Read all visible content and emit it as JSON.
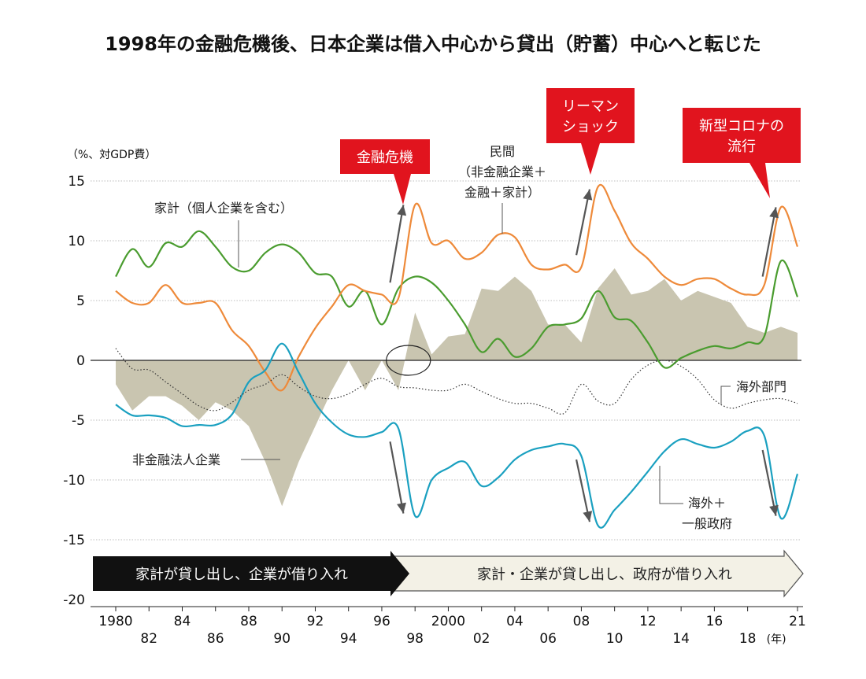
{
  "chart_data": {
    "type": "line",
    "title": "1998年の金融危機後、日本企業は借入中心から貸出（貯蓄）中心へと転じた",
    "ylabel": "（%、対GDP費）",
    "xunit": "(年)",
    "ylim": [
      -20,
      15
    ],
    "yticks": [
      15,
      10,
      5,
      0,
      -5,
      -10,
      -15,
      -20
    ],
    "xlim": [
      1980,
      2021
    ],
    "xticks": [
      {
        "x": 1980,
        "label": "1980",
        "row": 0
      },
      {
        "x": 1982,
        "label": "82",
        "row": 1
      },
      {
        "x": 1984,
        "label": "84",
        "row": 0
      },
      {
        "x": 1986,
        "label": "86",
        "row": 1
      },
      {
        "x": 1988,
        "label": "88",
        "row": 0
      },
      {
        "x": 1990,
        "label": "90",
        "row": 1
      },
      {
        "x": 1992,
        "label": "92",
        "row": 0
      },
      {
        "x": 1994,
        "label": "94",
        "row": 1
      },
      {
        "x": 1996,
        "label": "96",
        "row": 0
      },
      {
        "x": 1998,
        "label": "98",
        "row": 1
      },
      {
        "x": 2000,
        "label": "2000",
        "row": 0
      },
      {
        "x": 2002,
        "label": "02",
        "row": 1
      },
      {
        "x": 2004,
        "label": "04",
        "row": 0
      },
      {
        "x": 2006,
        "label": "06",
        "row": 1
      },
      {
        "x": 2008,
        "label": "08",
        "row": 0
      },
      {
        "x": 2010,
        "label": "10",
        "row": 1
      },
      {
        "x": 2012,
        "label": "12",
        "row": 0
      },
      {
        "x": 2014,
        "label": "14",
        "row": 1
      },
      {
        "x": 2016,
        "label": "16",
        "row": 0
      },
      {
        "x": 2018,
        "label": "18",
        "row": 1
      },
      {
        "x": 2021,
        "label": "21",
        "row": 0
      }
    ],
    "grid": true,
    "series": [
      {
        "name": "非金融法人企業",
        "kind": "area",
        "color": "#c9c5b0",
        "points": [
          [
            1980,
            -2.0
          ],
          [
            1981,
            -4.2
          ],
          [
            1982,
            -3.0
          ],
          [
            1983,
            -3.0
          ],
          [
            1984,
            -3.8
          ],
          [
            1985,
            -5.0
          ],
          [
            1986,
            -3.5
          ],
          [
            1987,
            -4.2
          ],
          [
            1988,
            -5.5
          ],
          [
            1989,
            -8.5
          ],
          [
            1990,
            -12.2
          ],
          [
            1991,
            -8.5
          ],
          [
            1992,
            -5.5
          ],
          [
            1993,
            -2.5
          ],
          [
            1994,
            0.0
          ],
          [
            1995,
            -2.5
          ],
          [
            1996,
            0.0
          ],
          [
            1997,
            -2.5
          ],
          [
            1998,
            4.0
          ],
          [
            1999,
            0.5
          ],
          [
            2000,
            2.0
          ],
          [
            2001,
            2.2
          ],
          [
            2002,
            6.0
          ],
          [
            2003,
            5.8
          ],
          [
            2004,
            7.0
          ],
          [
            2005,
            5.8
          ],
          [
            2006,
            3.0
          ],
          [
            2007,
            3.0
          ],
          [
            2008,
            1.5
          ],
          [
            2009,
            6.0
          ],
          [
            2010,
            7.7
          ],
          [
            2011,
            5.5
          ],
          [
            2012,
            5.8
          ],
          [
            2013,
            6.8
          ],
          [
            2014,
            5.0
          ],
          [
            2015,
            5.8
          ],
          [
            2016,
            5.3
          ],
          [
            2017,
            4.8
          ],
          [
            2018,
            2.8
          ],
          [
            2019,
            2.3
          ],
          [
            2020,
            2.8
          ],
          [
            2021,
            2.3
          ]
        ]
      },
      {
        "name": "家計（個人企業を含む）",
        "kind": "line",
        "color": "#4a9c2f",
        "points": [
          [
            1980,
            7.0
          ],
          [
            1981,
            9.3
          ],
          [
            1982,
            7.8
          ],
          [
            1983,
            9.8
          ],
          [
            1984,
            9.5
          ],
          [
            1985,
            10.8
          ],
          [
            1986,
            9.5
          ],
          [
            1987,
            7.8
          ],
          [
            1988,
            7.5
          ],
          [
            1989,
            9.0
          ],
          [
            1990,
            9.7
          ],
          [
            1991,
            9.0
          ],
          [
            1992,
            7.3
          ],
          [
            1993,
            7.0
          ],
          [
            1994,
            4.5
          ],
          [
            1995,
            5.8
          ],
          [
            1996,
            3.0
          ],
          [
            1997,
            6.0
          ],
          [
            1998,
            7.0
          ],
          [
            1999,
            6.5
          ],
          [
            2000,
            5.0
          ],
          [
            2001,
            3.0
          ],
          [
            2002,
            0.7
          ],
          [
            2003,
            1.8
          ],
          [
            2004,
            0.3
          ],
          [
            2005,
            1.0
          ],
          [
            2006,
            2.8
          ],
          [
            2007,
            3.0
          ],
          [
            2008,
            3.5
          ],
          [
            2009,
            5.8
          ],
          [
            2010,
            3.6
          ],
          [
            2011,
            3.3
          ],
          [
            2012,
            1.5
          ],
          [
            2013,
            -0.6
          ],
          [
            2014,
            0.2
          ],
          [
            2015,
            0.8
          ],
          [
            2016,
            1.2
          ],
          [
            2017,
            1.0
          ],
          [
            2018,
            1.5
          ],
          [
            2019,
            2.0
          ],
          [
            2020,
            8.3
          ],
          [
            2021,
            5.3
          ]
        ]
      },
      {
        "name": "民間（非金融企業＋金融＋家計）",
        "kind": "line",
        "color": "#ee8a3a",
        "points": [
          [
            1980,
            5.8
          ],
          [
            1981,
            4.8
          ],
          [
            1982,
            4.8
          ],
          [
            1983,
            6.3
          ],
          [
            1984,
            4.8
          ],
          [
            1985,
            4.8
          ],
          [
            1986,
            4.8
          ],
          [
            1987,
            2.5
          ],
          [
            1988,
            1.2
          ],
          [
            1989,
            -1.0
          ],
          [
            1990,
            -2.5
          ],
          [
            1991,
            0.3
          ],
          [
            1992,
            2.7
          ],
          [
            1993,
            4.5
          ],
          [
            1994,
            6.3
          ],
          [
            1995,
            5.8
          ],
          [
            1996,
            5.5
          ],
          [
            1997,
            5.2
          ],
          [
            1998,
            13.0
          ],
          [
            1999,
            9.8
          ],
          [
            2000,
            10.0
          ],
          [
            2001,
            8.5
          ],
          [
            2002,
            9.0
          ],
          [
            2003,
            10.5
          ],
          [
            2004,
            10.3
          ],
          [
            2005,
            8.0
          ],
          [
            2006,
            7.6
          ],
          [
            2007,
            8.0
          ],
          [
            2008,
            7.8
          ],
          [
            2009,
            14.5
          ],
          [
            2010,
            12.5
          ],
          [
            2011,
            9.8
          ],
          [
            2012,
            8.5
          ],
          [
            2013,
            7.0
          ],
          [
            2014,
            6.3
          ],
          [
            2015,
            6.8
          ],
          [
            2016,
            6.8
          ],
          [
            2017,
            6.0
          ],
          [
            2018,
            5.5
          ],
          [
            2019,
            6.3
          ],
          [
            2020,
            12.8
          ],
          [
            2021,
            9.5
          ]
        ]
      },
      {
        "name": "海外＋一般政府",
        "kind": "line",
        "color": "#1aa0c0",
        "points": [
          [
            1980,
            -3.7
          ],
          [
            1981,
            -4.6
          ],
          [
            1982,
            -4.6
          ],
          [
            1983,
            -4.8
          ],
          [
            1984,
            -5.5
          ],
          [
            1985,
            -5.4
          ],
          [
            1986,
            -5.4
          ],
          [
            1987,
            -4.5
          ],
          [
            1988,
            -1.8
          ],
          [
            1989,
            -0.8
          ],
          [
            1990,
            1.4
          ],
          [
            1991,
            -1.0
          ],
          [
            1992,
            -3.6
          ],
          [
            1993,
            -5.2
          ],
          [
            1994,
            -6.2
          ],
          [
            1995,
            -6.4
          ],
          [
            1996,
            -6.0
          ],
          [
            1997,
            -5.7
          ],
          [
            1998,
            -13.0
          ],
          [
            1999,
            -10.0
          ],
          [
            2000,
            -9.0
          ],
          [
            2001,
            -8.5
          ],
          [
            2002,
            -10.5
          ],
          [
            2003,
            -9.8
          ],
          [
            2004,
            -8.3
          ],
          [
            2005,
            -7.5
          ],
          [
            2006,
            -7.2
          ],
          [
            2007,
            -7.0
          ],
          [
            2008,
            -8.0
          ],
          [
            2009,
            -13.8
          ],
          [
            2010,
            -12.5
          ],
          [
            2011,
            -11.0
          ],
          [
            2012,
            -9.3
          ],
          [
            2013,
            -7.6
          ],
          [
            2014,
            -6.6
          ],
          [
            2015,
            -7.0
          ],
          [
            2016,
            -7.3
          ],
          [
            2017,
            -6.8
          ],
          [
            2018,
            -5.9
          ],
          [
            2019,
            -6.3
          ],
          [
            2020,
            -13.2
          ],
          [
            2021,
            -9.5
          ]
        ]
      },
      {
        "name": "海外部門",
        "kind": "dotted",
        "color": "#333333",
        "points": [
          [
            1980,
            1.0
          ],
          [
            1981,
            -0.7
          ],
          [
            1982,
            -0.8
          ],
          [
            1983,
            -1.8
          ],
          [
            1984,
            -2.8
          ],
          [
            1985,
            -3.8
          ],
          [
            1986,
            -4.2
          ],
          [
            1987,
            -3.5
          ],
          [
            1988,
            -2.5
          ],
          [
            1989,
            -2.0
          ],
          [
            1990,
            -1.2
          ],
          [
            1991,
            -2.2
          ],
          [
            1992,
            -3.0
          ],
          [
            1993,
            -3.2
          ],
          [
            1994,
            -2.8
          ],
          [
            1995,
            -2.0
          ],
          [
            1996,
            -1.5
          ],
          [
            1997,
            -2.2
          ],
          [
            1998,
            -2.3
          ],
          [
            1999,
            -2.5
          ],
          [
            2000,
            -2.5
          ],
          [
            2001,
            -2.0
          ],
          [
            2002,
            -2.6
          ],
          [
            2003,
            -3.2
          ],
          [
            2004,
            -3.6
          ],
          [
            2005,
            -3.6
          ],
          [
            2006,
            -4.0
          ],
          [
            2007,
            -4.4
          ],
          [
            2008,
            -2.0
          ],
          [
            2009,
            -3.4
          ],
          [
            2010,
            -3.6
          ],
          [
            2011,
            -1.6
          ],
          [
            2012,
            -0.4
          ],
          [
            2013,
            0.0
          ],
          [
            2014,
            -0.5
          ],
          [
            2015,
            -1.6
          ],
          [
            2016,
            -3.3
          ],
          [
            2017,
            -4.0
          ],
          [
            2018,
            -3.6
          ],
          [
            2019,
            -3.3
          ],
          [
            2020,
            -3.2
          ],
          [
            2021,
            -3.6
          ]
        ]
      }
    ],
    "labels": {
      "corp": "非金融法人企業",
      "household": "家計（個人企業を含む）",
      "private_lines": [
        "民間",
        "（非金融企業＋",
        "金融＋家計）"
      ],
      "overseas": "海外部門",
      "gov_lines": [
        "海外＋",
        "一般政府"
      ]
    },
    "events": [
      {
        "lines": [
          "金融危機"
        ],
        "x": 1998
      },
      {
        "lines": [
          "リーマン",
          "ショック"
        ],
        "x": 2009
      },
      {
        "lines": [
          "新型コロナの",
          "流行"
        ],
        "x": 2020
      }
    ],
    "arrows": [
      {
        "from": [
          1996.5,
          6.5
        ],
        "to": [
          1997.3,
          13.0
        ]
      },
      {
        "from": [
          1996.5,
          -6.8
        ],
        "to": [
          1997.3,
          -12.8
        ]
      },
      {
        "from": [
          2007.7,
          8.8
        ],
        "to": [
          2008.5,
          14.3
        ]
      },
      {
        "from": [
          2007.7,
          -8.3
        ],
        "to": [
          2008.5,
          -13.5
        ]
      },
      {
        "from": [
          2018.9,
          7.0
        ],
        "to": [
          2019.7,
          12.8
        ]
      },
      {
        "from": [
          2018.9,
          -7.5
        ],
        "to": [
          2019.7,
          -13.0
        ]
      }
    ],
    "phases": [
      {
        "label": "家計が貸し出し、企業が借り入れ",
        "from": 1978.2,
        "to": 1997.5,
        "style": "dark"
      },
      {
        "label": "家計・企業が貸し出し、政府が借り入れ",
        "from": 1997.5,
        "to": 2021.4,
        "style": "light"
      }
    ]
  }
}
